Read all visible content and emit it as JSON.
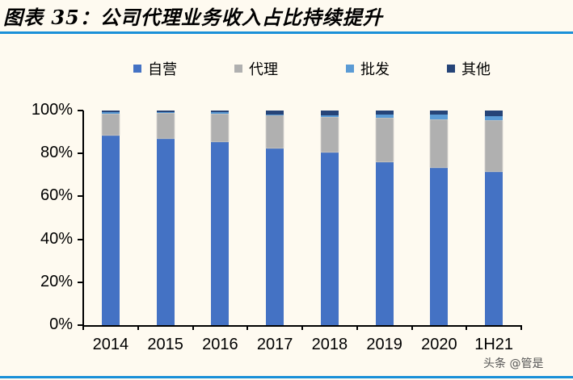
{
  "title": "图表 35：公司代理业务收入占比持续提升",
  "watermark": "头条 @管是",
  "legend": [
    {
      "label": "自营",
      "color": "#4472c4"
    },
    {
      "label": "代理",
      "color": "#b0b0b0"
    },
    {
      "label": "批发",
      "color": "#5b9bd5"
    },
    {
      "label": "其他",
      "color": "#264478"
    }
  ],
  "y_ticks": [
    "0%",
    "20%",
    "40%",
    "60%",
    "80%",
    "100%"
  ],
  "chart_data": {
    "type": "bar",
    "stacked": true,
    "title": "图表 35：公司代理业务收入占比持续提升",
    "xlabel": "",
    "ylabel": "",
    "ylim": [
      0,
      100
    ],
    "y_format": "percent",
    "legend_position": "top",
    "grid": false,
    "categories": [
      "2014",
      "2015",
      "2016",
      "2017",
      "2018",
      "2019",
      "2020",
      "1H21"
    ],
    "series": [
      {
        "name": "自营",
        "color": "#4472c4",
        "values": [
          88.5,
          87.0,
          85.5,
          82.5,
          80.5,
          76.0,
          73.5,
          71.5
        ]
      },
      {
        "name": "代理",
        "color": "#b0b0b0",
        "values": [
          10.0,
          12.0,
          13.0,
          15.5,
          16.5,
          20.5,
          22.5,
          24.0
        ]
      },
      {
        "name": "批发",
        "color": "#5b9bd5",
        "values": [
          0.8,
          0.3,
          0.7,
          0.3,
          0.8,
          1.5,
          2.0,
          2.0
        ]
      },
      {
        "name": "其他",
        "color": "#264478",
        "values": [
          0.7,
          0.7,
          0.8,
          1.7,
          2.2,
          2.0,
          2.0,
          2.5
        ]
      }
    ]
  }
}
